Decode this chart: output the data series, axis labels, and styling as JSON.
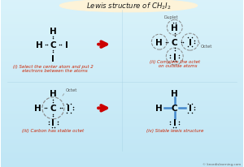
{
  "title": "Lewis structure of CH₂I₂",
  "bg_color": "#c5e8f5",
  "title_bg": "#fdf3d8",
  "title_border": "#c8b060",
  "red_arrow_color": "#cc0000",
  "label_color": "#cc2200",
  "atom_color": "#000000",
  "bond_color_blue": "#4488cc",
  "caption_i": "(i) Select the center atom and put 2\n   electrons between the atoms",
  "caption_ii": "(ii) Complete the octet\n     on outside atoms",
  "caption_iii": "(iii) Carbon has stable octet",
  "caption_iv": "(iv) Stable lewis structure",
  "watermark": "© knordislearning.com",
  "duplet_label": "Duplet",
  "octet_label": "Octet"
}
